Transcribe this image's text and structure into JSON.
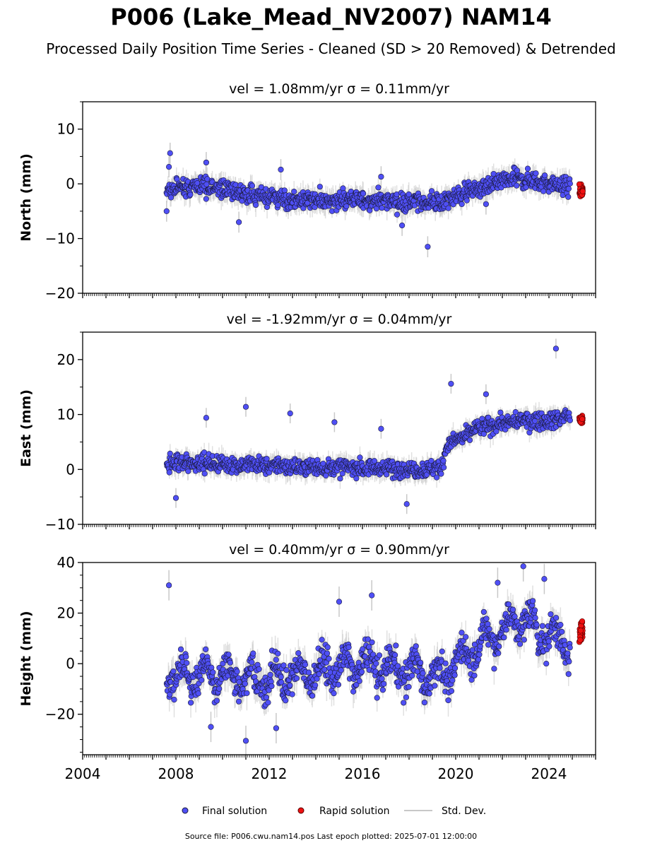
{
  "title": "P006 (Lake_Mead_NV2007) NAM14",
  "subtitle": "Processed Daily Position Time Series - Cleaned (SD > 20 Removed) & Detrended",
  "footer": "Source file: P006.cwu.nam14.pos  Last epoch plotted: 2025-07-01 12:00:00",
  "colors": {
    "final": "#4f4ff5",
    "rapid": "#ee1111",
    "stddev": "#c8c8c8",
    "edge": "#1a1a3a"
  },
  "legend": {
    "final": "Final solution",
    "rapid": "Rapid solution",
    "stddev": "Std. Dev."
  },
  "chart_data": [
    {
      "type": "scatter",
      "title": "vel = 1.08mm/yr   σ = 0.11mm/yr",
      "ylabel": "North (mm)",
      "xlim": [
        2004.0,
        2026.0
      ],
      "ylim": [
        -20,
        15
      ],
      "yticks": [
        -20,
        -10,
        0,
        10
      ],
      "xticks": [
        2004,
        2008,
        2012,
        2016,
        2020,
        2024
      ],
      "show_xtick_labels": false,
      "series": [
        {
          "name": "Final solution",
          "trend": [
            [
              2007.6,
              -1.0
            ],
            [
              2009.5,
              -0.5
            ],
            [
              2011.0,
              -2.0
            ],
            [
              2013.0,
              -3.0
            ],
            [
              2016.0,
              -3.0
            ],
            [
              2019.3,
              -3.5
            ],
            [
              2020.5,
              -1.5
            ],
            [
              2022.7,
              1.0
            ],
            [
              2024.0,
              0.0
            ],
            [
              2024.9,
              -0.5
            ]
          ],
          "noise": 1.4,
          "err": 1.6,
          "outliers": [
            [
              2007.75,
              5.6
            ],
            [
              2007.7,
              3.1
            ],
            [
              2009.3,
              3.9
            ],
            [
              2012.5,
              2.6
            ],
            [
              2018.8,
              -11.5
            ],
            [
              2017.7,
              -7.6
            ],
            [
              2010.7,
              -7.0
            ],
            [
              2007.6,
              -5.0
            ],
            [
              2016.8,
              1.3
            ],
            [
              2021.3,
              -3.7
            ]
          ]
        },
        {
          "name": "Rapid solution",
          "range": [
            2025.3,
            2025.45
          ],
          "center": -1.3,
          "spread": 1.0
        }
      ]
    },
    {
      "type": "scatter",
      "title": "vel = -1.92mm/yr   σ = 0.04mm/yr",
      "ylabel": "East (mm)",
      "xlim": [
        2004.0,
        2026.0
      ],
      "ylim": [
        -10,
        25
      ],
      "yticks": [
        -10,
        0,
        10,
        20
      ],
      "xticks": [
        2004,
        2008,
        2012,
        2016,
        2020,
        2024
      ],
      "show_xtick_labels": false,
      "series": [
        {
          "name": "Final solution",
          "trend": [
            [
              2007.6,
              1.5
            ],
            [
              2010.0,
              1.0
            ],
            [
              2013.0,
              0.5
            ],
            [
              2016.0,
              0.3
            ],
            [
              2019.4,
              0.0
            ],
            [
              2019.6,
              4.5
            ],
            [
              2020.2,
              5.5
            ],
            [
              2020.9,
              7.5
            ],
            [
              2022.0,
              8.5
            ],
            [
              2024.0,
              9.0
            ],
            [
              2024.9,
              9.5
            ]
          ],
          "noise": 1.3,
          "err": 1.5,
          "outliers": [
            [
              2024.3,
              22.0
            ],
            [
              2019.8,
              15.6
            ],
            [
              2011.0,
              11.4
            ],
            [
              2012.9,
              10.2
            ],
            [
              2009.3,
              9.4
            ],
            [
              2014.8,
              8.6
            ],
            [
              2008.0,
              -5.2
            ],
            [
              2017.9,
              -6.3
            ],
            [
              2021.3,
              13.7
            ],
            [
              2016.8,
              7.4
            ]
          ]
        },
        {
          "name": "Rapid solution",
          "range": [
            2025.3,
            2025.45
          ],
          "center": 9.0,
          "spread": 0.9
        }
      ]
    },
    {
      "type": "scatter",
      "title": "vel = 0.40mm/yr   σ = 0.90mm/yr",
      "ylabel": "Height (mm)",
      "xlim": [
        2004.0,
        2026.0
      ],
      "ylim": [
        -36,
        40
      ],
      "yticks": [
        -20,
        0,
        20,
        40
      ],
      "xticks": [
        2004,
        2008,
        2012,
        2016,
        2020,
        2024
      ],
      "show_xtick_labels": true,
      "series": [
        {
          "name": "Final solution",
          "trend": [
            [
              2007.6,
              -5.0
            ],
            [
              2010.0,
              -5.0
            ],
            [
              2012.0,
              -6.0
            ],
            [
              2014.0,
              -3.0
            ],
            [
              2016.0,
              0.0
            ],
            [
              2018.0,
              -3.0
            ],
            [
              2019.5,
              -5.0
            ],
            [
              2020.3,
              3.0
            ],
            [
              2021.5,
              10.0
            ],
            [
              2022.8,
              18.0
            ],
            [
              2023.6,
              12.0
            ],
            [
              2024.9,
              8.0
            ]
          ],
          "noise": 5.5,
          "err": 5.0,
          "seasonal": 5.0,
          "outliers": [
            [
              2007.7,
              31.0
            ],
            [
              2011.0,
              -30.5
            ],
            [
              2022.9,
              38.5
            ],
            [
              2012.3,
              -25.5
            ],
            [
              2009.5,
              -25.0
            ],
            [
              2015.0,
              24.5
            ],
            [
              2023.8,
              33.5
            ],
            [
              2021.8,
              32.0
            ],
            [
              2016.4,
              27.0
            ]
          ]
        },
        {
          "name": "Rapid solution",
          "range": [
            2025.3,
            2025.45
          ],
          "center": 13.0,
          "spread": 4.5
        }
      ]
    }
  ]
}
